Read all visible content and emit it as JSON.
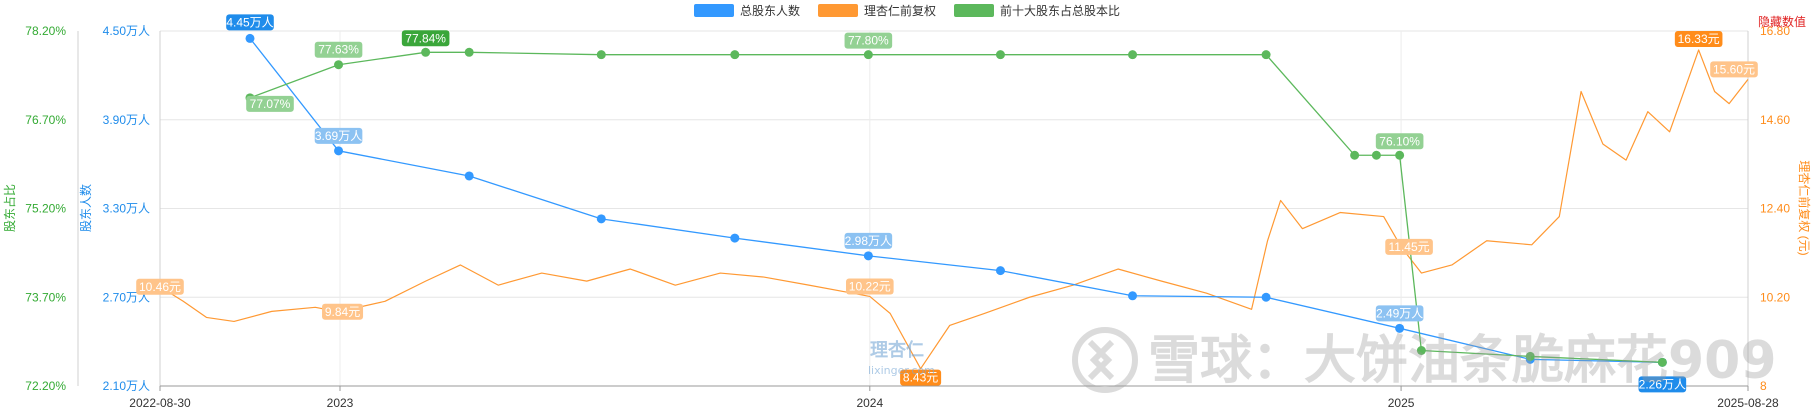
{
  "chart_data": {
    "type": "line",
    "legend": {
      "placement": "top-center",
      "items": [
        {
          "label": "总股东人数",
          "color": "#3399ff"
        },
        {
          "label": "理杏仁前复权",
          "color": "#ff9933"
        },
        {
          "label": "前十大股东占总股本比",
          "color": "#5cb85c"
        }
      ]
    },
    "x_axis": {
      "type": "date",
      "range": [
        "2022-08-30",
        "2025-08-28"
      ],
      "ticks": [
        "2022-08-30",
        "2023",
        "2024",
        "2025",
        "2025-08-28"
      ]
    },
    "y_axes": {
      "pct": {
        "label": "股东占比",
        "color": "#33aa33",
        "ticks": [
          "72.20%",
          "73.70%",
          "75.20%",
          "76.70%",
          "78.20%"
        ],
        "range": [
          72.2,
          78.2
        ]
      },
      "holders": {
        "label": "股东人数",
        "color": "#1f8ceb",
        "ticks": [
          "2.10万人",
          "2.70万人",
          "3.30万人",
          "3.90万人",
          "4.50万人"
        ],
        "range": [
          2.1,
          4.5
        ]
      },
      "price": {
        "label": "理杏仁前复权 (元)",
        "color": "#ff8c1a",
        "ticks": [
          "8",
          "10.20",
          "12.40",
          "14.60",
          "16.80"
        ],
        "range": [
          8,
          16.8
        ]
      }
    },
    "hidden_value_label": "隐藏数值",
    "series": [
      {
        "name": "总股东人数",
        "axis": "holders",
        "color": "#3399ff",
        "points": [
          [
            "2022-10-31",
            4.45
          ],
          [
            "2022-12-31",
            3.69
          ],
          [
            "2023-03-31",
            3.52
          ],
          [
            "2023-06-30",
            3.23
          ],
          [
            "2023-09-30",
            3.1
          ],
          [
            "2023-12-31",
            2.98
          ],
          [
            "2024-03-31",
            2.88
          ],
          [
            "2024-06-30",
            2.71
          ],
          [
            "2024-09-30",
            2.7
          ],
          [
            "2024-12-31",
            2.49
          ],
          [
            "2025-03-31",
            2.28
          ],
          [
            "2025-06-30",
            2.26
          ]
        ],
        "labels": [
          {
            "date": "2022-10-31",
            "text": "4.45万人",
            "style": "dark"
          },
          {
            "date": "2022-12-31",
            "text": "3.69万人",
            "style": "light"
          },
          {
            "date": "2023-12-31",
            "text": "2.98万人",
            "style": "light"
          },
          {
            "date": "2024-12-31",
            "text": "2.49万人",
            "style": "light"
          },
          {
            "date": "2025-06-30",
            "text": "2.26万人",
            "style": "dark"
          }
        ]
      },
      {
        "name": "理杏仁前复权",
        "axis": "price",
        "color": "#ff9933",
        "points": [
          [
            "2022-08-30",
            10.46
          ],
          [
            "2022-09-15",
            10.1
          ],
          [
            "2022-10-01",
            9.7
          ],
          [
            "2022-10-20",
            9.6
          ],
          [
            "2022-11-15",
            9.85
          ],
          [
            "2022-12-15",
            9.95
          ],
          [
            "2022-12-31",
            9.84
          ],
          [
            "2023-02-01",
            10.1
          ],
          [
            "2023-03-01",
            10.6
          ],
          [
            "2023-03-25",
            11.0
          ],
          [
            "2023-04-20",
            10.5
          ],
          [
            "2023-05-20",
            10.8
          ],
          [
            "2023-06-20",
            10.6
          ],
          [
            "2023-07-20",
            10.9
          ],
          [
            "2023-08-20",
            10.5
          ],
          [
            "2023-09-20",
            10.8
          ],
          [
            "2023-10-20",
            10.7
          ],
          [
            "2023-11-20",
            10.5
          ],
          [
            "2023-12-20",
            10.3
          ],
          [
            "2024-01-01",
            10.22
          ],
          [
            "2024-01-15",
            9.8
          ],
          [
            "2024-02-05",
            8.43
          ],
          [
            "2024-02-25",
            9.5
          ],
          [
            "2024-03-20",
            9.8
          ],
          [
            "2024-04-20",
            10.2
          ],
          [
            "2024-05-20",
            10.5
          ],
          [
            "2024-06-20",
            10.9
          ],
          [
            "2024-07-20",
            10.6
          ],
          [
            "2024-08-20",
            10.3
          ],
          [
            "2024-09-20",
            9.9
          ],
          [
            "2024-10-01",
            11.6
          ],
          [
            "2024-10-10",
            12.6
          ],
          [
            "2024-10-25",
            11.9
          ],
          [
            "2024-11-20",
            12.3
          ],
          [
            "2024-12-20",
            12.2
          ],
          [
            "2025-01-01",
            11.45
          ],
          [
            "2025-01-15",
            10.8
          ],
          [
            "2025-02-05",
            11.0
          ],
          [
            "2025-03-01",
            11.6
          ],
          [
            "2025-04-01",
            11.5
          ],
          [
            "2025-04-20",
            12.2
          ],
          [
            "2025-05-05",
            15.3
          ],
          [
            "2025-05-20",
            14.0
          ],
          [
            "2025-06-05",
            13.6
          ],
          [
            "2025-06-20",
            14.8
          ],
          [
            "2025-07-05",
            14.3
          ],
          [
            "2025-07-25",
            16.33
          ],
          [
            "2025-08-05",
            15.3
          ],
          [
            "2025-08-15",
            15.0
          ],
          [
            "2025-08-28",
            15.6
          ]
        ],
        "labels": [
          {
            "date": "2022-08-30",
            "text": "10.46元",
            "style": "light"
          },
          {
            "date": "2022-12-31",
            "text": "9.84元",
            "style": "light"
          },
          {
            "date": "2024-01-01",
            "text": "10.22元",
            "style": "light"
          },
          {
            "date": "2024-02-05",
            "text": "8.43元",
            "style": "dark"
          },
          {
            "date": "2025-01-01",
            "text": "11.45元",
            "style": "light"
          },
          {
            "date": "2025-07-25",
            "text": "16.33元",
            "style": "dark"
          },
          {
            "date": "2025-08-28",
            "text": "15.60元",
            "style": "light"
          }
        ]
      },
      {
        "name": "前十大股东占总股本比",
        "axis": "pct",
        "color": "#5cb85c",
        "points": [
          [
            "2022-10-31",
            77.07
          ],
          [
            "2022-12-31",
            77.63
          ],
          [
            "2023-03-01",
            77.84
          ],
          [
            "2023-03-31",
            77.84
          ],
          [
            "2023-06-30",
            77.8
          ],
          [
            "2023-09-30",
            77.8
          ],
          [
            "2023-12-31",
            77.8
          ],
          [
            "2024-03-31",
            77.8
          ],
          [
            "2024-06-30",
            77.8
          ],
          [
            "2024-09-30",
            77.8
          ],
          [
            "2024-11-30",
            76.1
          ],
          [
            "2024-12-15",
            76.1
          ],
          [
            "2024-12-31",
            76.1
          ],
          [
            "2025-01-15",
            72.8
          ],
          [
            "2025-03-31",
            72.7
          ],
          [
            "2025-06-30",
            72.6
          ]
        ],
        "labels": [
          {
            "date": "2022-10-31",
            "text": "77.07%",
            "style": "light"
          },
          {
            "date": "2022-12-31",
            "text": "77.63%",
            "style": "light"
          },
          {
            "date": "2023-03-01",
            "text": "77.84%",
            "style": "dark"
          },
          {
            "date": "2023-12-31",
            "text": "77.80%",
            "style": "light"
          },
          {
            "date": "2024-12-31",
            "text": "76.10%",
            "style": "light"
          }
        ]
      }
    ],
    "watermarks": {
      "source": "理杏仁",
      "source_sub": "lixinger.com",
      "platform": "雪球：大饼油条脆麻花909"
    }
  }
}
